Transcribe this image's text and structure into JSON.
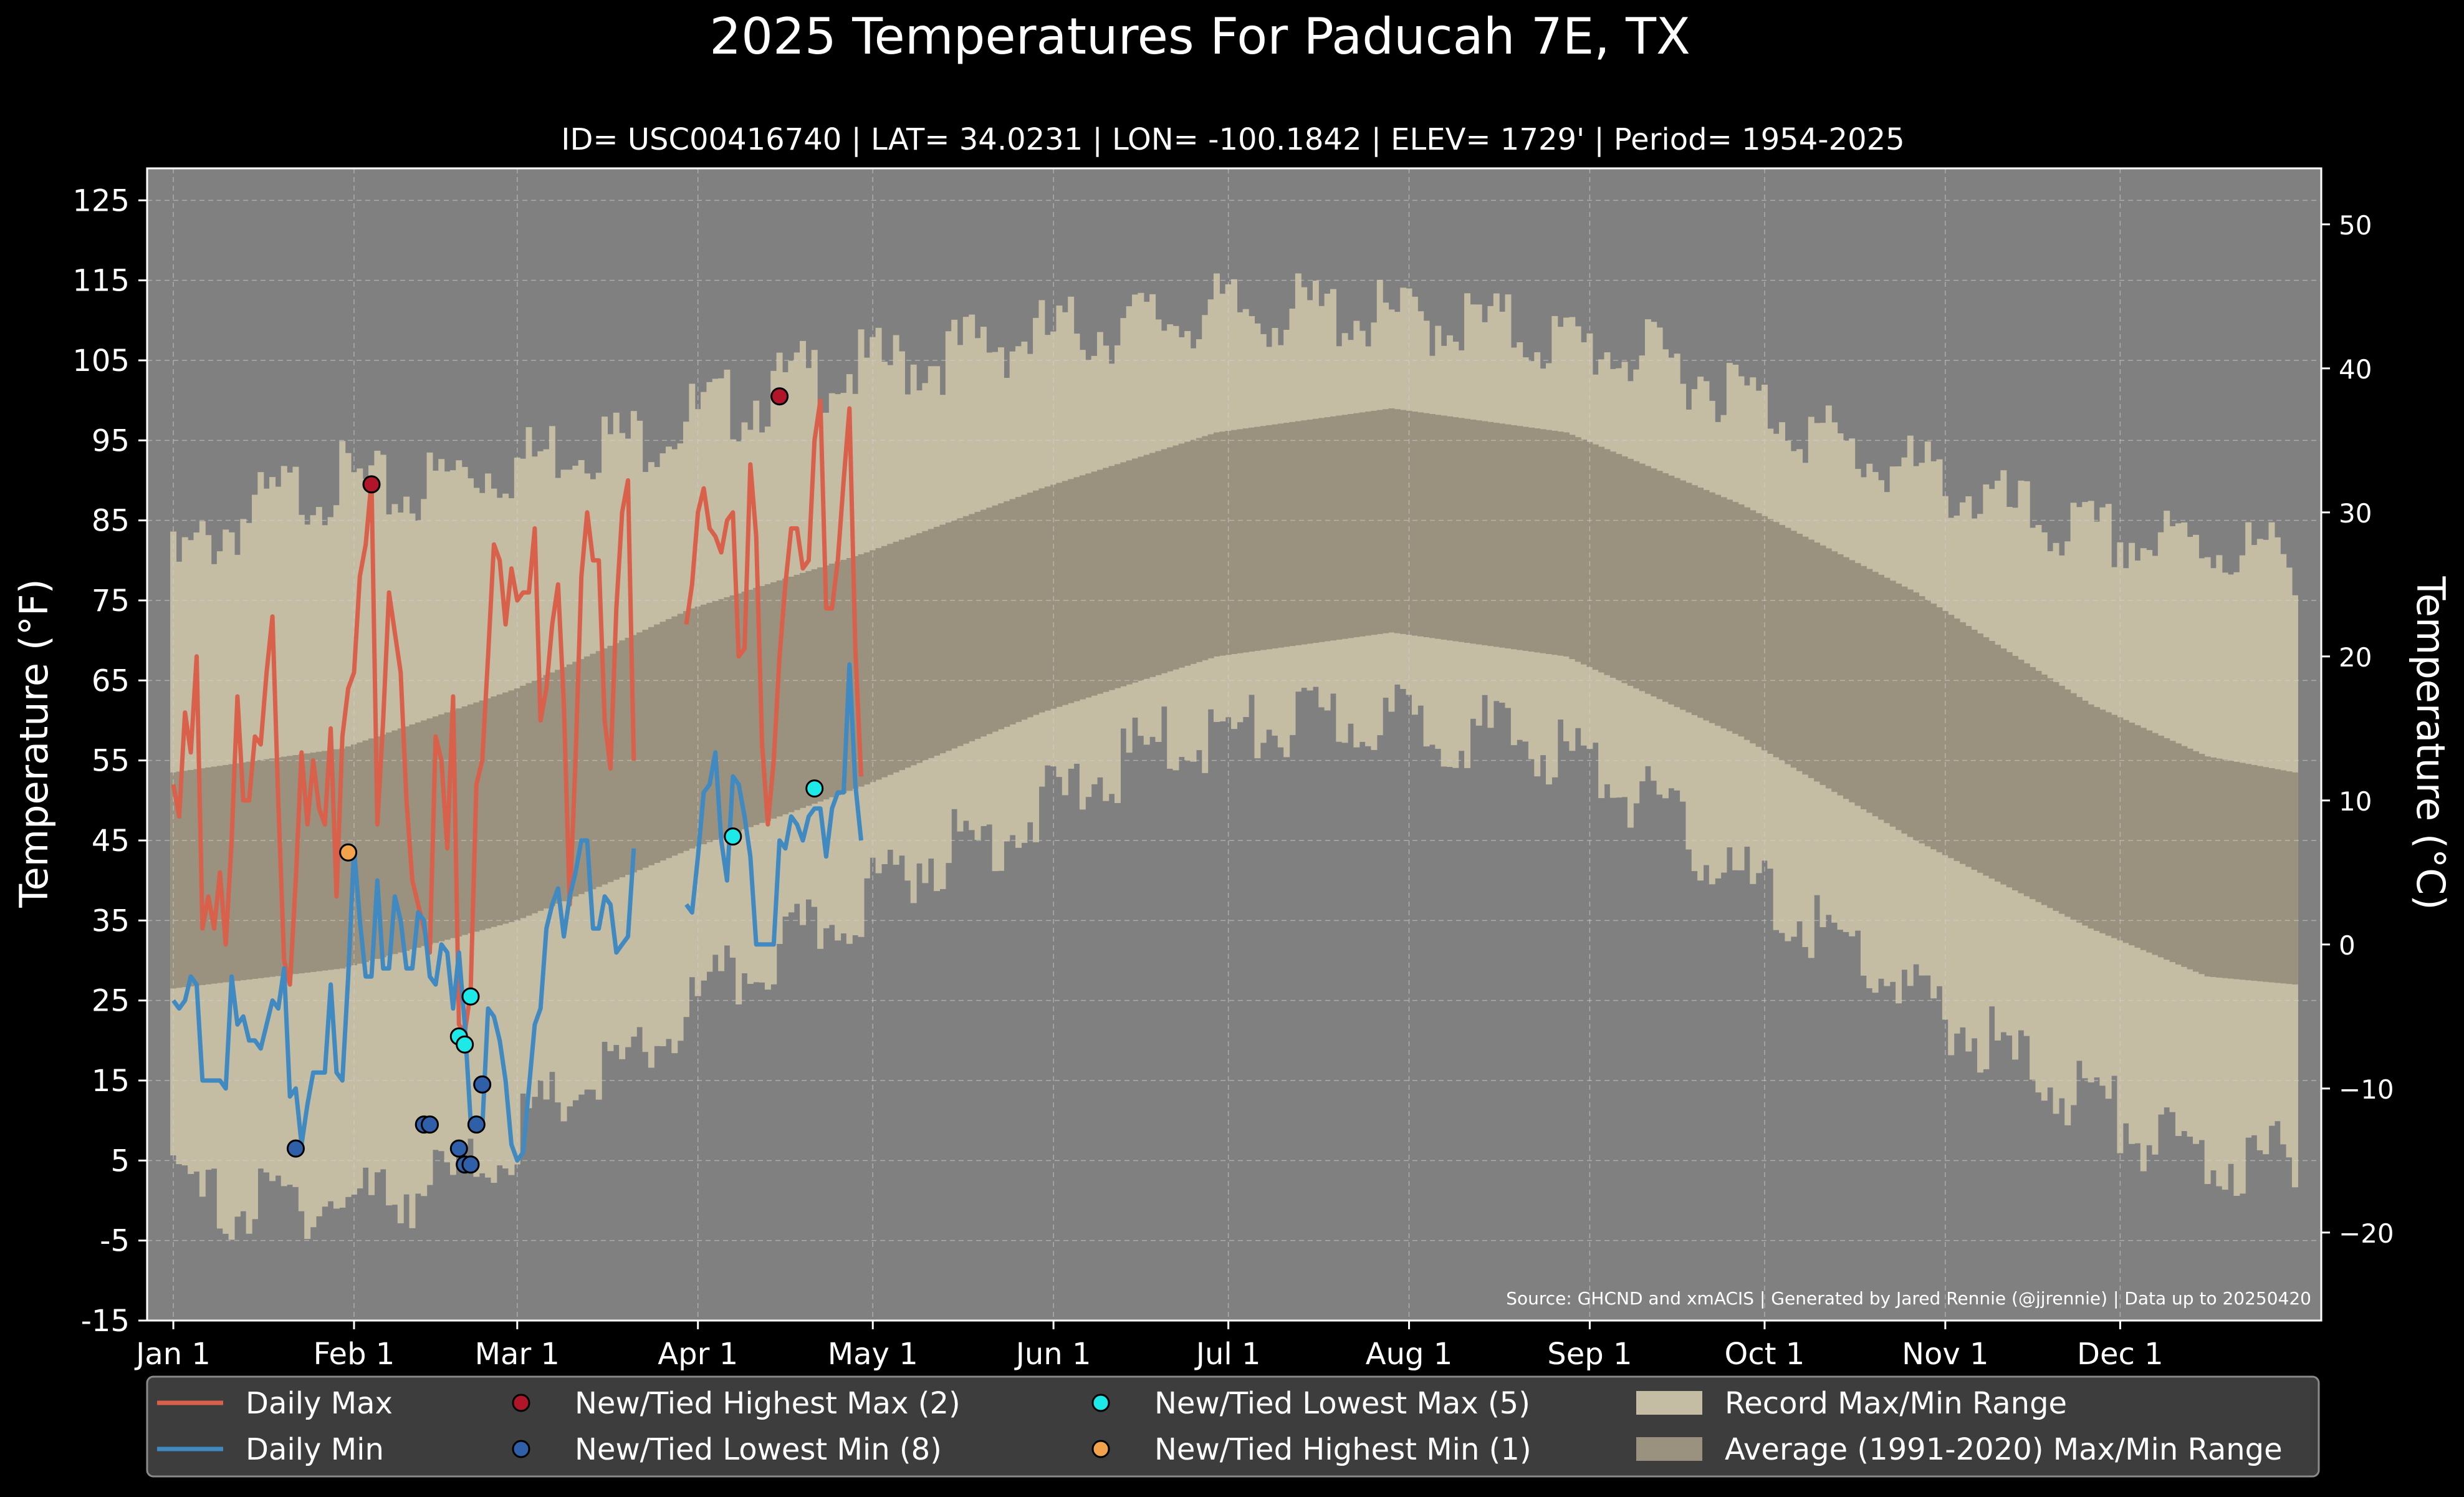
{
  "chart_data": {
    "type": "line",
    "title": "2025 Temperatures For Paducah 7E, TX",
    "subtitle": "ID= USC00416740 | LAT= 34.0231 | LON= -100.1842 | ELEV= 1729' | Period= 1954-2025",
    "ylabel_left": "Temperature ($^\\circ$F)",
    "ylabel_right": "Temperature ($^\\circ$C)",
    "ylabel_left_text": "Temperature (°F)",
    "ylabel_right_text": "Temperature (°C)",
    "source": "Source: GHCND and xmACIS | Generated by Jared Rennie (@jjrennie) | Data up to 20250420",
    "x_ticks": [
      {
        "day": 1,
        "label": "Jan 1"
      },
      {
        "day": 32,
        "label": "Feb 1"
      },
      {
        "day": 60,
        "label": "Mar 1"
      },
      {
        "day": 91,
        "label": "Apr 1"
      },
      {
        "day": 121,
        "label": "May 1"
      },
      {
        "day": 152,
        "label": "Jun 1"
      },
      {
        "day": 182,
        "label": "Jul 1"
      },
      {
        "day": 213,
        "label": "Aug 1"
      },
      {
        "day": 244,
        "label": "Sep 1"
      },
      {
        "day": 274,
        "label": "Oct 1"
      },
      {
        "day": 305,
        "label": "Nov 1"
      },
      {
        "day": 335,
        "label": "Dec 1"
      }
    ],
    "xlim": [
      -3.5,
      369.5
    ],
    "ylim_f": [
      -15,
      129
    ],
    "y_ticks_f": [
      -15,
      -5,
      5,
      15,
      25,
      35,
      45,
      55,
      65,
      75,
      85,
      95,
      105,
      115,
      125
    ],
    "y_ticks_c": [
      -20,
      -10,
      0,
      10,
      20,
      30,
      40,
      50
    ],
    "grid": true,
    "colors": {
      "background": "#000000",
      "axes_bg": "#808080",
      "record_range": "#c5bca4",
      "normal_range": "#9a917e",
      "daily_max": "#d9604b",
      "daily_min": "#4189c1",
      "new_high_max": "#b0152a",
      "new_low_min": "#2e5fa8",
      "new_low_max": "#1de9e9",
      "new_high_min": "#f2a24a",
      "text": "#ffffff"
    },
    "record_max_keypoints": [
      [
        1,
        79
      ],
      [
        10,
        84
      ],
      [
        20,
        88
      ],
      [
        30,
        90
      ],
      [
        40,
        88
      ],
      [
        50,
        91
      ],
      [
        60,
        92
      ],
      [
        70,
        95
      ],
      [
        80,
        95
      ],
      [
        90,
        98
      ],
      [
        100,
        100
      ],
      [
        110,
        103
      ],
      [
        120,
        104
      ],
      [
        130,
        105
      ],
      [
        140,
        107
      ],
      [
        150,
        108
      ],
      [
        160,
        109
      ],
      [
        170,
        110
      ],
      [
        180,
        111
      ],
      [
        190,
        111
      ],
      [
        200,
        111
      ],
      [
        210,
        110
      ],
      [
        220,
        110
      ],
      [
        230,
        109
      ],
      [
        240,
        107
      ],
      [
        250,
        106
      ],
      [
        260,
        104
      ],
      [
        270,
        101
      ],
      [
        280,
        97
      ],
      [
        290,
        93
      ],
      [
        300,
        91
      ],
      [
        310,
        88
      ],
      [
        320,
        85
      ],
      [
        330,
        83
      ],
      [
        340,
        82
      ],
      [
        350,
        82
      ],
      [
        365,
        80
      ]
    ],
    "record_min_keypoints": [
      [
        1,
        2
      ],
      [
        10,
        -1
      ],
      [
        20,
        0
      ],
      [
        30,
        0
      ],
      [
        40,
        1
      ],
      [
        50,
        3
      ],
      [
        60,
        8
      ],
      [
        70,
        14
      ],
      [
        80,
        17
      ],
      [
        90,
        24
      ],
      [
        100,
        29
      ],
      [
        110,
        33
      ],
      [
        120,
        38
      ],
      [
        130,
        43
      ],
      [
        140,
        45
      ],
      [
        150,
        49
      ],
      [
        160,
        53
      ],
      [
        170,
        57
      ],
      [
        180,
        58
      ],
      [
        190,
        59
      ],
      [
        200,
        60
      ],
      [
        210,
        60
      ],
      [
        220,
        59
      ],
      [
        230,
        58
      ],
      [
        240,
        56
      ],
      [
        250,
        52
      ],
      [
        260,
        46
      ],
      [
        270,
        40
      ],
      [
        280,
        35
      ],
      [
        290,
        31
      ],
      [
        300,
        25
      ],
      [
        310,
        21
      ],
      [
        320,
        16
      ],
      [
        330,
        13
      ],
      [
        340,
        8
      ],
      [
        350,
        5
      ],
      [
        365,
        5
      ]
    ],
    "normal_max_keypoints": [
      [
        1,
        53.5
      ],
      [
        30,
        56.5
      ],
      [
        60,
        64
      ],
      [
        90,
        74
      ],
      [
        120,
        81
      ],
      [
        150,
        89
      ],
      [
        180,
        96
      ],
      [
        210,
        99
      ],
      [
        240,
        96
      ],
      [
        270,
        87
      ],
      [
        300,
        76
      ],
      [
        330,
        62
      ],
      [
        350,
        55.5
      ],
      [
        365,
        53.5
      ]
    ],
    "normal_min_keypoints": [
      [
        1,
        26.5
      ],
      [
        30,
        29
      ],
      [
        60,
        35
      ],
      [
        90,
        44
      ],
      [
        120,
        52
      ],
      [
        150,
        61
      ],
      [
        180,
        68
      ],
      [
        210,
        71
      ],
      [
        240,
        68
      ],
      [
        270,
        58
      ],
      [
        300,
        45
      ],
      [
        330,
        34
      ],
      [
        350,
        28
      ],
      [
        365,
        27
      ]
    ],
    "daily_max": [
      52,
      48,
      61,
      56,
      68,
      34,
      38,
      34,
      41,
      32,
      45,
      63,
      50,
      50,
      58,
      57,
      66,
      73,
      50,
      30,
      27,
      40,
      56,
      47,
      55,
      49,
      47,
      59,
      38,
      58,
      64,
      66,
      78,
      82,
      90,
      47,
      60,
      76,
      71,
      66,
      50,
      40,
      37,
      34,
      31,
      58,
      55,
      44,
      63,
      22,
      21,
      26,
      52,
      55,
      68,
      82,
      80,
      72,
      79,
      75,
      76,
      76,
      84,
      60,
      64,
      72,
      77,
      62,
      37,
      55,
      78,
      86,
      80,
      80,
      60,
      54,
      74,
      86,
      90,
      55,
      null,
      null,
      null,
      null,
      null,
      null,
      null,
      null,
      72,
      77,
      86,
      89,
      84,
      83,
      81,
      85,
      86,
      68,
      69,
      92,
      83,
      57,
      47,
      55,
      68,
      77,
      84,
      84,
      79,
      80,
      95,
      100,
      74,
      74,
      80,
      90,
      99,
      69,
      53
    ],
    "daily_min": [
      25,
      24,
      25,
      28,
      27,
      15,
      15,
      15,
      15,
      14,
      28,
      22,
      23,
      20,
      20,
      19,
      22,
      25,
      24,
      29,
      13,
      14,
      7,
      12,
      16,
      16,
      16,
      27,
      16,
      15,
      28,
      44,
      35,
      28,
      28,
      40,
      29,
      29,
      38,
      35,
      29,
      29,
      36,
      35,
      28,
      27,
      32,
      31,
      24,
      31,
      22,
      10,
      10,
      9,
      24,
      23,
      20,
      15,
      7,
      5,
      6,
      14,
      22,
      24,
      34,
      37,
      39,
      33,
      38,
      41,
      45,
      45,
      34,
      34,
      38,
      37,
      31,
      32,
      33,
      44,
      null,
      null,
      null,
      null,
      null,
      null,
      null,
      null,
      37,
      36,
      43,
      51,
      52,
      56,
      45,
      40,
      53,
      52,
      48,
      43,
      32,
      32,
      32,
      32,
      45,
      44,
      48,
      47,
      45,
      48,
      49,
      49,
      43,
      49,
      51,
      51,
      67,
      52,
      45
    ],
    "markers": {
      "new_tied_highest_max": [
        [
          35,
          89.5
        ],
        [
          105,
          100.5
        ]
      ],
      "new_tied_lowest_min": [
        [
          22,
          6.5
        ],
        [
          44,
          9.5
        ],
        [
          45,
          9.5
        ],
        [
          50,
          6.5
        ],
        [
          51,
          4.5
        ],
        [
          52,
          4.5
        ],
        [
          53,
          9.5
        ],
        [
          54,
          14.5
        ]
      ],
      "new_tied_lowest_max": [
        [
          50,
          20.5
        ],
        [
          51,
          19.5
        ],
        [
          52,
          25.5
        ],
        [
          97,
          45.5
        ],
        [
          111,
          51.5
        ]
      ],
      "new_tied_highest_min": [
        [
          31,
          43.5
        ]
      ]
    },
    "legend": [
      {
        "key": "daily_max",
        "label": "Daily Max",
        "kind": "line"
      },
      {
        "key": "daily_min",
        "label": "Daily Min",
        "kind": "line"
      },
      {
        "key": "new_high_max",
        "label": "New/Tied Highest Max (2)",
        "kind": "marker"
      },
      {
        "key": "new_low_min",
        "label": "New/Tied Lowest Min (8)",
        "kind": "marker"
      },
      {
        "key": "new_low_max",
        "label": "New/Tied Lowest Max (5)",
        "kind": "marker"
      },
      {
        "key": "new_high_min",
        "label": "New/Tied Highest Min (1)",
        "kind": "marker"
      },
      {
        "key": "record_range",
        "label": "Record Max/Min Range",
        "kind": "patch"
      },
      {
        "key": "normal_range",
        "label": "Average (1991-2020) Max/Min Range",
        "kind": "patch"
      }
    ],
    "legend_placement": "bottom"
  }
}
